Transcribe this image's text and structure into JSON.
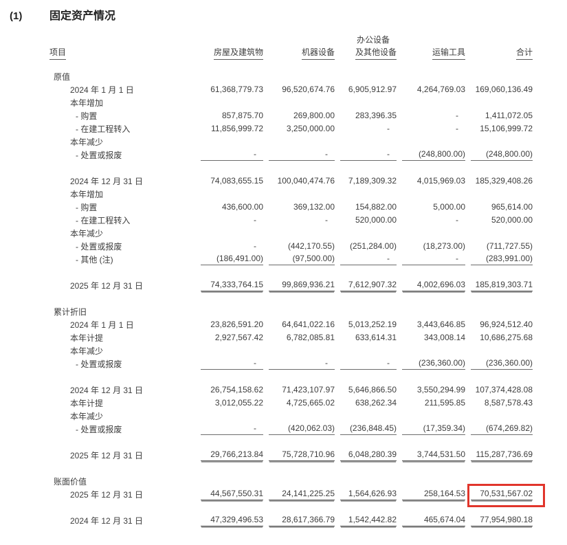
{
  "page": {
    "index_label": "(1)",
    "title": "固定资产情况"
  },
  "highlight": {
    "color": "#e1352b"
  },
  "table": {
    "header": {
      "item": "项目",
      "buildings": "房屋及建筑物",
      "machinery": "机器设备",
      "office_line1": "办公设备",
      "office_line2": "及其他设备",
      "transport": "运输工具",
      "total": "合计"
    },
    "rows": [
      {
        "label": "原值",
        "indent": 0
      },
      {
        "label": "2024 年 1 月 1 日",
        "indent": 1,
        "values": [
          "61,368,779.73",
          "96,520,674.76",
          "6,905,912.97",
          "4,264,769.03",
          "169,060,136.49"
        ]
      },
      {
        "label": "本年增加",
        "indent": 1
      },
      {
        "label": "- 购置",
        "indent": 2,
        "values": [
          "857,875.70",
          "269,800.00",
          "283,396.35",
          "-",
          "1,411,072.05"
        ]
      },
      {
        "label": "- 在建工程转入",
        "indent": 2,
        "values": [
          "11,856,999.72",
          "3,250,000.00",
          "-",
          "-",
          "15,106,999.72"
        ]
      },
      {
        "label": "本年减少",
        "indent": 1
      },
      {
        "label": "- 处置或报废",
        "indent": 2,
        "values": [
          "-",
          "-",
          "-",
          "(248,800.00)",
          "(248,800.00)"
        ],
        "underline": "single"
      },
      {
        "spacer": true
      },
      {
        "label": "2024 年 12 月 31 日",
        "indent": 1,
        "values": [
          "74,083,655.15",
          "100,040,474.76",
          "7,189,309.32",
          "4,015,969.03",
          "185,329,408.26"
        ]
      },
      {
        "label": "本年增加",
        "indent": 1
      },
      {
        "label": "- 购置",
        "indent": 2,
        "values": [
          "436,600.00",
          "369,132.00",
          "154,882.00",
          "5,000.00",
          "965,614.00"
        ]
      },
      {
        "label": "- 在建工程转入",
        "indent": 2,
        "values": [
          "-",
          "-",
          "520,000.00",
          "-",
          "520,000.00"
        ]
      },
      {
        "label": "本年减少",
        "indent": 1
      },
      {
        "label": "- 处置或报废",
        "indent": 2,
        "values": [
          "-",
          "(442,170.55)",
          "(251,284.00)",
          "(18,273.00)",
          "(711,727.55)"
        ]
      },
      {
        "label": "- 其他 (注)",
        "indent": 2,
        "values": [
          "(186,491.00)",
          "(97,500.00)",
          "-",
          "-",
          "(283,991.00)"
        ],
        "underline": "single"
      },
      {
        "spacer": true
      },
      {
        "label": "2025 年 12 月 31 日",
        "indent": 1,
        "values": [
          "74,333,764.15",
          "99,869,936.21",
          "7,612,907.32",
          "4,002,696.03",
          "185,819,303.71"
        ],
        "underline": "double"
      },
      {
        "spacer": true
      },
      {
        "label": "累计折旧",
        "indent": 0
      },
      {
        "label": "2024 年 1 月 1 日",
        "indent": 1,
        "values": [
          "23,826,591.20",
          "64,641,022.16",
          "5,013,252.19",
          "3,443,646.85",
          "96,924,512.40"
        ]
      },
      {
        "label": "本年计提",
        "indent": 1,
        "values": [
          "2,927,567.42",
          "6,782,085.81",
          "633,614.31",
          "343,008.14",
          "10,686,275.68"
        ]
      },
      {
        "label": "本年减少",
        "indent": 1
      },
      {
        "label": "- 处置或报废",
        "indent": 2,
        "values": [
          "-",
          "-",
          "-",
          "(236,360.00)",
          "(236,360.00)"
        ],
        "underline": "single"
      },
      {
        "spacer": true
      },
      {
        "label": "2024 年 12 月 31 日",
        "indent": 1,
        "values": [
          "26,754,158.62",
          "71,423,107.97",
          "5,646,866.50",
          "3,550,294.99",
          "107,374,428.08"
        ]
      },
      {
        "label": "本年计提",
        "indent": 1,
        "values": [
          "3,012,055.22",
          "4,725,665.02",
          "638,262.34",
          "211,595.85",
          "8,587,578.43"
        ]
      },
      {
        "label": "本年减少",
        "indent": 1
      },
      {
        "label": "- 处置或报废",
        "indent": 2,
        "values": [
          "-",
          "(420,062.03)",
          "(236,848.45)",
          "(17,359.34)",
          "(674,269.82)"
        ],
        "underline": "single"
      },
      {
        "spacer": true
      },
      {
        "label": "2025 年 12 月 31 日",
        "indent": 1,
        "values": [
          "29,766,213.84",
          "75,728,710.96",
          "6,048,280.39",
          "3,744,531.50",
          "115,287,736.69"
        ],
        "underline": "double"
      },
      {
        "spacer": true
      },
      {
        "label": "账面价值",
        "indent": 0
      },
      {
        "label": "2025 年 12 月 31 日",
        "indent": 1,
        "values": [
          "44,567,550.31",
          "24,141,225.25",
          "1,564,626.93",
          "258,164.53",
          "70,531,567.02"
        ],
        "underline": "double",
        "highlight_col": 4
      },
      {
        "spacer": true
      },
      {
        "label": "2024 年 12 月 31 日",
        "indent": 1,
        "values": [
          "47,329,496.53",
          "28,617,366.79",
          "1,542,442.82",
          "465,674.04",
          "77,954,980.18"
        ],
        "underline": "double"
      }
    ]
  }
}
